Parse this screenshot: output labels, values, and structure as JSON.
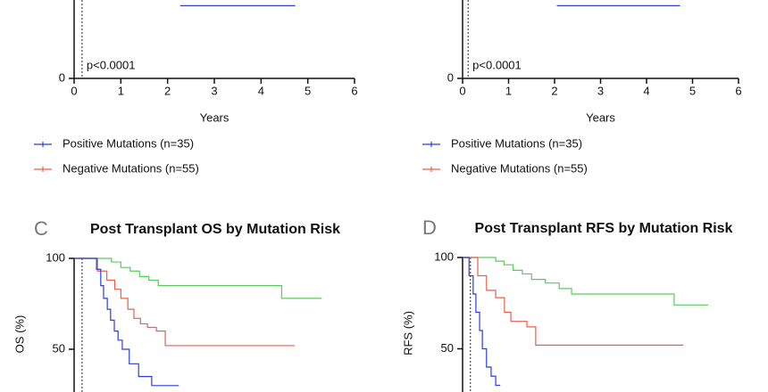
{
  "chart_data": [
    {
      "type": "line",
      "step": true,
      "xlabel": "Years",
      "annotation": "p<0.0001",
      "xlim": [
        0,
        6
      ],
      "xticks": [
        0,
        1,
        2,
        3,
        4,
        5,
        6
      ],
      "ylim": [
        0,
        100
      ],
      "yticks": [
        0
      ],
      "reference_x": 0.17,
      "series": [
        {
          "name": "Positive Mutations (n=35)",
          "color": "#2b3fd6",
          "x": [
            2.27,
            4.73
          ],
          "values": [
            40,
            40
          ]
        },
        {
          "name": "Negative Mutations (n=55)",
          "color": "#e8604c",
          "x": [],
          "values": []
        }
      ]
    },
    {
      "type": "line",
      "step": true,
      "xlabel": "Years",
      "annotation": "p<0.0001",
      "xlim": [
        0,
        6
      ],
      "xticks": [
        0,
        1,
        2,
        3,
        4,
        5,
        6
      ],
      "ylim": [
        0,
        100
      ],
      "yticks": [
        0
      ],
      "reference_x": 0.12,
      "series": [
        {
          "name": "Positive Mutations (n=35)",
          "color": "#2b3fd6",
          "x": [
            2.05,
            4.73
          ],
          "values": [
            40,
            40
          ]
        },
        {
          "name": "Negative Mutations (n=55)",
          "color": "#e8604c",
          "x": [],
          "values": []
        }
      ]
    },
    {
      "type": "line",
      "step": true,
      "panel_label": "C",
      "title": "Post Transplant OS by Mutation Risk",
      "ylabel": "OS (%)",
      "xlim": [
        0,
        6
      ],
      "ylim": [
        0,
        100
      ],
      "yticks": [
        50,
        100
      ],
      "reference_x": 0.17,
      "series": [
        {
          "color": "#5cc95c",
          "x": [
            0,
            0.8,
            1.0,
            1.2,
            1.4,
            1.6,
            1.8,
            4.44,
            5.3
          ],
          "values": [
            100,
            98,
            95,
            93,
            90,
            88,
            85,
            78,
            78
          ]
        },
        {
          "color": "#e8604c",
          "x": [
            0,
            0.5,
            0.7,
            0.87,
            1.0,
            1.15,
            1.28,
            1.42,
            1.57,
            1.76,
            1.95,
            4.72
          ],
          "values": [
            100,
            93,
            88,
            83,
            78,
            72,
            67,
            64,
            62,
            60,
            52,
            52
          ]
        },
        {
          "color": "#2b3fd6",
          "x": [
            0,
            0.48,
            0.57,
            0.63,
            0.71,
            0.78,
            0.86,
            0.94,
            1.03,
            1.18,
            1.38,
            1.66,
            2.24
          ],
          "values": [
            100,
            94,
            85,
            78,
            72,
            66,
            60,
            55,
            50,
            42,
            35,
            30,
            30
          ]
        }
      ]
    },
    {
      "type": "line",
      "step": true,
      "panel_label": "D",
      "title": "Post Transplant RFS by Mutation Risk",
      "ylabel": "RFS (%)",
      "xlim": [
        0,
        6
      ],
      "ylim": [
        0,
        100
      ],
      "yticks": [
        50,
        100
      ],
      "reference_x": 0.17,
      "series": [
        {
          "color": "#5cc95c",
          "x": [
            0,
            0.72,
            0.9,
            1.1,
            1.3,
            1.5,
            1.8,
            2.1,
            2.37,
            4.6,
            5.34
          ],
          "values": [
            100,
            98,
            96,
            93,
            91,
            88,
            86,
            83,
            80,
            74,
            74
          ]
        },
        {
          "color": "#e8604c",
          "x": [
            0,
            0.33,
            0.52,
            0.72,
            0.91,
            1.05,
            1.4,
            1.59,
            4.8
          ],
          "values": [
            100,
            90,
            82,
            78,
            70,
            65,
            62,
            52,
            52
          ]
        },
        {
          "color": "#2b3fd6",
          "x": [
            0,
            0.14,
            0.23,
            0.29,
            0.37,
            0.43,
            0.52,
            0.62,
            0.72,
            0.82
          ],
          "values": [
            100,
            90,
            80,
            70,
            60,
            50,
            40,
            35,
            30,
            30
          ]
        }
      ]
    }
  ]
}
